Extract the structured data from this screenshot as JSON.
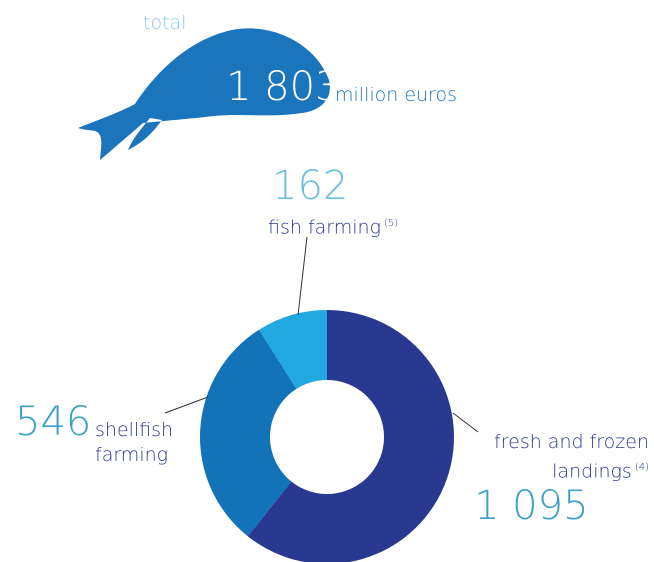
{
  "header": {
    "total_label": "total",
    "total_value": 1803,
    "total_value_label": "1 803",
    "unit": "million euros"
  },
  "chart_data": {
    "type": "donut",
    "categories": [
      "fresh and frozen landings",
      "shellfish farming",
      "fish farming"
    ],
    "notes": [
      "(4)",
      null,
      "(5)"
    ],
    "values": [
      1095,
      546,
      162
    ],
    "value_labels": [
      "1 095",
      "546",
      "162"
    ],
    "colors": [
      "#2a3990",
      "#1273b8",
      "#22a8e0"
    ]
  }
}
